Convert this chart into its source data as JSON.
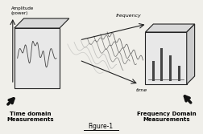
{
  "bg_color": "#f0efea",
  "title": "Figure-1",
  "left_label": "Time domain\nMeasurements",
  "right_label": "Frequency Domain\nMeasurements",
  "amplitude_label": "Amplitude\n(power)",
  "frequency_label": "frequency",
  "time_label": "time",
  "line_color": "#444444",
  "panel_face": "#e8e8e8",
  "panel_edge": "#222222",
  "arrow_color": "#111111",
  "wave_color": "#999999",
  "wave_color2": "#555555"
}
